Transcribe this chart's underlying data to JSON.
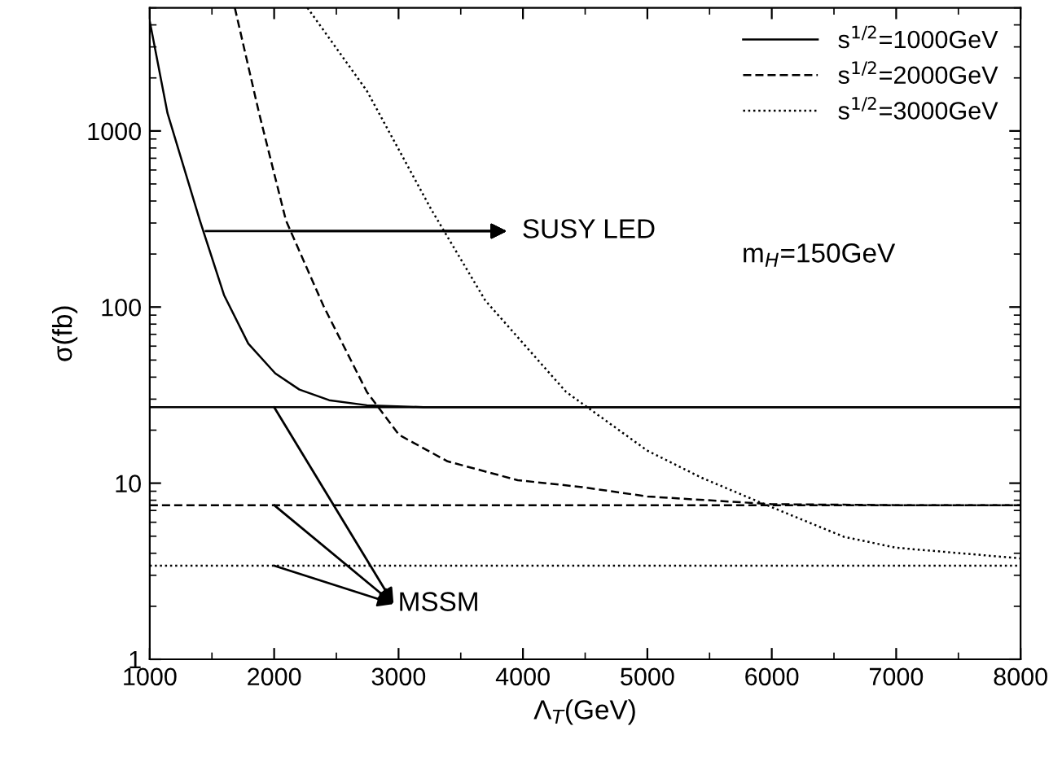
{
  "chart_data": {
    "type": "line",
    "xlabel": "Λ$_{T}$(GeV)",
    "ylabel": "σ(fb)",
    "xlim": [
      1000,
      8000
    ],
    "xticks": [
      1000,
      2000,
      3000,
      4000,
      5000,
      6000,
      7000,
      8000
    ],
    "ylim": [
      1,
      5000
    ],
    "yticks": [
      1,
      10,
      100,
      1000
    ],
    "log": "y",
    "grid": false,
    "legend": "top right",
    "series": [
      {
        "name": "s$^{1/2}$=1000GeV",
        "color": "#000000",
        "line_style": "solid",
        "x": [
          1000,
          1143,
          1403,
          1597,
          1792,
          2009,
          2203,
          2442,
          2745,
          3200,
          8000
        ],
        "values": [
          4200,
          1260,
          310,
          117,
          62,
          42,
          34,
          29.6,
          27.7,
          27,
          27
        ]
      },
      {
        "name": "s$^{1/2}$=2000GeV",
        "color": "#000000",
        "line_style": "dashed",
        "x": [
          1684,
          1879,
          2095,
          2398,
          2745,
          3004,
          3394,
          3957,
          4476,
          5000,
          6000,
          7000,
          8000
        ],
        "values": [
          5000,
          1260,
          310,
          101,
          33,
          18.8,
          13.3,
          10.4,
          9.5,
          8.4,
          7.6,
          7.5,
          7.5
        ]
      },
      {
        "name": "s$^{1/2}$=3000GeV",
        "color": "#000000",
        "line_style": "dotted",
        "x": [
          2268,
          2745,
          3264,
          3697,
          4346,
          5000,
          5440,
          6000,
          6580,
          7000,
          8000
        ],
        "values": [
          5000,
          1690,
          357,
          109,
          33,
          15.3,
          10.7,
          7.3,
          4.96,
          4.3,
          3.74
        ]
      }
    ],
    "ref_lines": [
      {
        "axis": "y",
        "value": 27,
        "line_style": "solid",
        "color": "#000000"
      },
      {
        "axis": "y",
        "value": 7.5,
        "line_style": "dashed",
        "color": "#000000"
      },
      {
        "axis": "y",
        "value": 3.4,
        "line_style": "dotted",
        "color": "#000000"
      }
    ],
    "annotations": [
      {
        "text": "SUSY LED",
        "x": 1450,
        "y": 270
      },
      {
        "text": "MSSM",
        "x": 2000,
        "y": 27
      },
      "m$_{H}$=150GeV"
    ]
  }
}
